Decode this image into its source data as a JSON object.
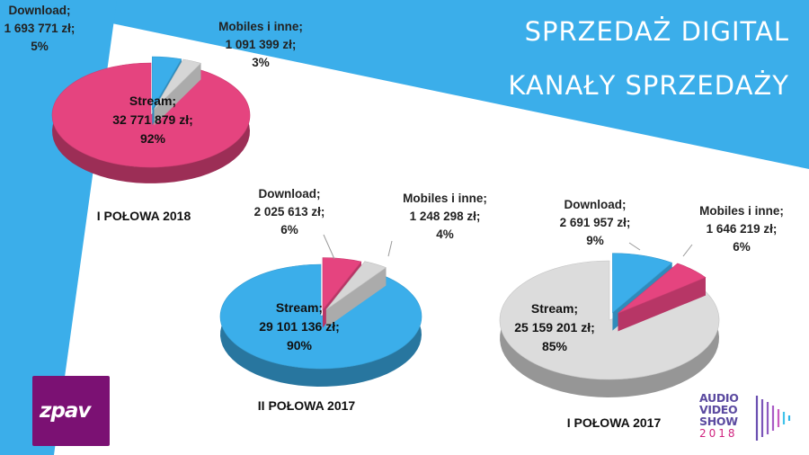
{
  "slide": {
    "title_line1": "SPRZEDAŻ DIGITAL",
    "title_line2": "KANAŁY SPRZEDAŻY",
    "colors": {
      "blue": "#3baeea",
      "pink": "#e5447f",
      "grey": "#dadada",
      "white": "#ffffff"
    },
    "logo_left_text": "zpav",
    "logo_right": {
      "line1": "AUDIO",
      "line2": "VIDEO",
      "line3": "SHOW",
      "year": "2018"
    }
  },
  "chart_data": [
    {
      "type": "pie",
      "caption": "I POŁOWA 2018",
      "slices": [
        {
          "name": "Stream",
          "value": 32771879,
          "percent": 92,
          "label": [
            "Stream;",
            "32 771 879 zł;",
            "92%"
          ],
          "color": "#e5447f"
        },
        {
          "name": "Download",
          "value": 1693771,
          "percent": 5,
          "label": [
            "Download;",
            "1 693 771 zł;",
            "5%"
          ],
          "color": "#3baeea"
        },
        {
          "name": "Mobiles i inne",
          "value": 1091399,
          "percent": 3,
          "label": [
            "Mobiles i inne;",
            "1 091 399 zł;",
            "3%"
          ],
          "color": "#d6d6d6"
        }
      ]
    },
    {
      "type": "pie",
      "caption": "II POŁOWA 2017",
      "slices": [
        {
          "name": "Stream",
          "value": 29101136,
          "percent": 90,
          "label": [
            "Stream;",
            "29 101 136 zł;",
            "90%"
          ],
          "color": "#3baeea"
        },
        {
          "name": "Download",
          "value": 2025613,
          "percent": 6,
          "label": [
            "Download;",
            "2 025 613 zł;",
            "6%"
          ],
          "color": "#e5447f"
        },
        {
          "name": "Mobiles i inne",
          "value": 1248298,
          "percent": 4,
          "label": [
            "Mobiles i inne;",
            "1 248 298 zł;",
            "4%"
          ],
          "color": "#d6d6d6"
        }
      ]
    },
    {
      "type": "pie",
      "caption": "I POŁOWA 2017",
      "slices": [
        {
          "name": "Stream",
          "value": 25159201,
          "percent": 85,
          "label": [
            "Stream;",
            "25 159 201 zł;",
            "85%"
          ],
          "color": "#dcdcdc"
        },
        {
          "name": "Download",
          "value": 2691957,
          "percent": 9,
          "label": [
            "Download;",
            "2 691 957 zł;",
            "9%"
          ],
          "color": "#3baeea"
        },
        {
          "name": "Mobiles i inne",
          "value": 1646219,
          "percent": 6,
          "label": [
            "Mobiles i inne;",
            "1 646 219 zł;",
            "6%"
          ],
          "color": "#e5447f"
        }
      ]
    }
  ]
}
